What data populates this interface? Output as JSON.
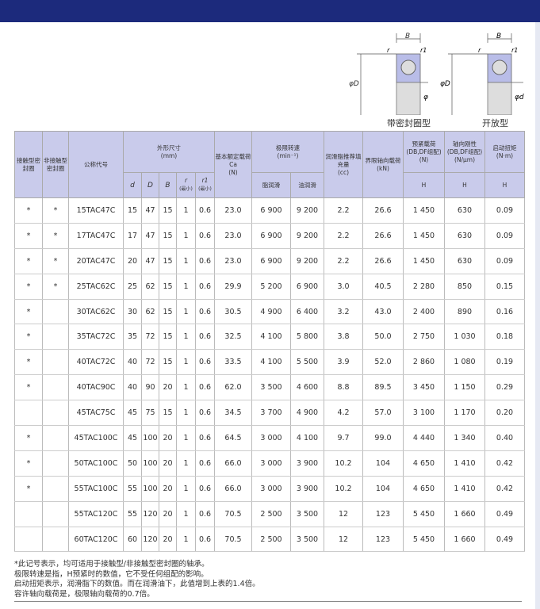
{
  "diagrams": [
    {
      "caption": "带密封圈型",
      "labels": {
        "B": "B",
        "r": "r",
        "r1": "r1",
        "D": "φD",
        "d": "φd"
      }
    },
    {
      "caption": "开放型",
      "labels": {
        "B": "B",
        "r": "r",
        "r1": "r1",
        "D": "φD",
        "d": "φd"
      }
    }
  ],
  "table": {
    "headers": {
      "contact": "接触型密封圈",
      "noncontact": "非接触型密封圈",
      "code": "公称代号",
      "dims": "外形尺寸",
      "dims_unit": "(mm)",
      "d": "d",
      "D": "D",
      "B": "B",
      "r": "r",
      "r_min": "(最小)",
      "r1": "r1",
      "r1_min": "(最小)",
      "load": "基本额定载荷 Ca",
      "load_unit": "(N)",
      "speed": "极限转速",
      "speed_unit": "(min⁻¹)",
      "grease": "脂润滑",
      "oil": "油润滑",
      "fill": "润滑脂推荐填充量",
      "fill_unit": "(cc)",
      "axial": "界限轴向载荷",
      "axial_unit": "(kN)",
      "preload": "预紧载荷",
      "preload_sub": "(DB,DF组配)",
      "preload_unit": "(N)",
      "stiff": "轴向刚性",
      "stiff_sub": "(DB,DF组配)",
      "stiff_unit": "(N/μm)",
      "torque": "启动扭矩",
      "torque_unit": "(N·m)",
      "H1": "H",
      "H2": "H",
      "H3": "H"
    },
    "rows": [
      [
        "*",
        "*",
        "15TAC47C",
        "15",
        "47",
        "15",
        "1",
        "0.6",
        "23.0",
        "6 900",
        "9 200",
        "2.2",
        "26.6",
        "1 450",
        "630",
        "0.09"
      ],
      [
        "*",
        "*",
        "17TAC47C",
        "17",
        "47",
        "15",
        "1",
        "0.6",
        "23.0",
        "6 900",
        "9 200",
        "2.2",
        "26.6",
        "1 450",
        "630",
        "0.09"
      ],
      [
        "*",
        "*",
        "20TAC47C",
        "20",
        "47",
        "15",
        "1",
        "0.6",
        "23.0",
        "6 900",
        "9 200",
        "2.2",
        "26.6",
        "1 450",
        "630",
        "0.09"
      ],
      [
        "*",
        "*",
        "25TAC62C",
        "25",
        "62",
        "15",
        "1",
        "0.6",
        "29.9",
        "5 200",
        "6 900",
        "3.0",
        "40.5",
        "2 280",
        "850",
        "0.15"
      ],
      [
        "*",
        "",
        "30TAC62C",
        "30",
        "62",
        "15",
        "1",
        "0.6",
        "30.5",
        "4 900",
        "6 400",
        "3.2",
        "43.0",
        "2 400",
        "890",
        "0.16"
      ],
      [
        "*",
        "",
        "35TAC72C",
        "35",
        "72",
        "15",
        "1",
        "0.6",
        "32.5",
        "4 100",
        "5 800",
        "3.8",
        "50.0",
        "2 750",
        "1 030",
        "0.18"
      ],
      [
        "*",
        "",
        "40TAC72C",
        "40",
        "72",
        "15",
        "1",
        "0.6",
        "33.5",
        "4 100",
        "5 500",
        "3.9",
        "52.0",
        "2 860",
        "1 080",
        "0.19"
      ],
      [
        "*",
        "",
        "40TAC90C",
        "40",
        "90",
        "20",
        "1",
        "0.6",
        "62.0",
        "3 500",
        "4 600",
        "8.8",
        "89.5",
        "3 450",
        "1 150",
        "0.29"
      ],
      [
        "",
        "",
        "45TAC75C",
        "45",
        "75",
        "15",
        "1",
        "0.6",
        "34.5",
        "3 700",
        "4 900",
        "4.2",
        "57.0",
        "3 100",
        "1 170",
        "0.20"
      ],
      [
        "*",
        "",
        "45TAC100C",
        "45",
        "100",
        "20",
        "1",
        "0.6",
        "64.5",
        "3 000",
        "4 100",
        "9.7",
        "99.0",
        "4 440",
        "1 340",
        "0.40"
      ],
      [
        "*",
        "",
        "50TAC100C",
        "50",
        "100",
        "20",
        "1",
        "0.6",
        "66.0",
        "3 000",
        "3 900",
        "10.2",
        "104",
        "4 650",
        "1 410",
        "0.42"
      ],
      [
        "*",
        "",
        "55TAC100C",
        "55",
        "100",
        "20",
        "1",
        "0.6",
        "66.0",
        "3 000",
        "3 900",
        "10.2",
        "104",
        "4 650",
        "1 410",
        "0.42"
      ],
      [
        "",
        "",
        "55TAC120C",
        "55",
        "120",
        "20",
        "1",
        "0.6",
        "70.5",
        "2 500",
        "3 500",
        "12",
        "123",
        "5 450",
        "1 660",
        "0.49"
      ],
      [
        "",
        "",
        "60TAC120C",
        "60",
        "120",
        "20",
        "1",
        "0.6",
        "70.5",
        "2 500",
        "3 500",
        "12",
        "123",
        "5 450",
        "1 660",
        "0.49"
      ]
    ]
  },
  "notes": [
    "*此记号表示，均可适用于接触型/非接触型密封圈的轴承。",
    "极限转速是指，H预紧时的数值，它不受任何组配的影响。",
    "启动扭矩表示，润滑脂下的数值。而在润滑油下，此值增到上表的1.4倍。",
    "容许轴向载荷是，极限轴向载荷的0.7倍。"
  ],
  "colors": {
    "header_bar": "#1c2a7c",
    "table_header": "#c9cbeb"
  }
}
